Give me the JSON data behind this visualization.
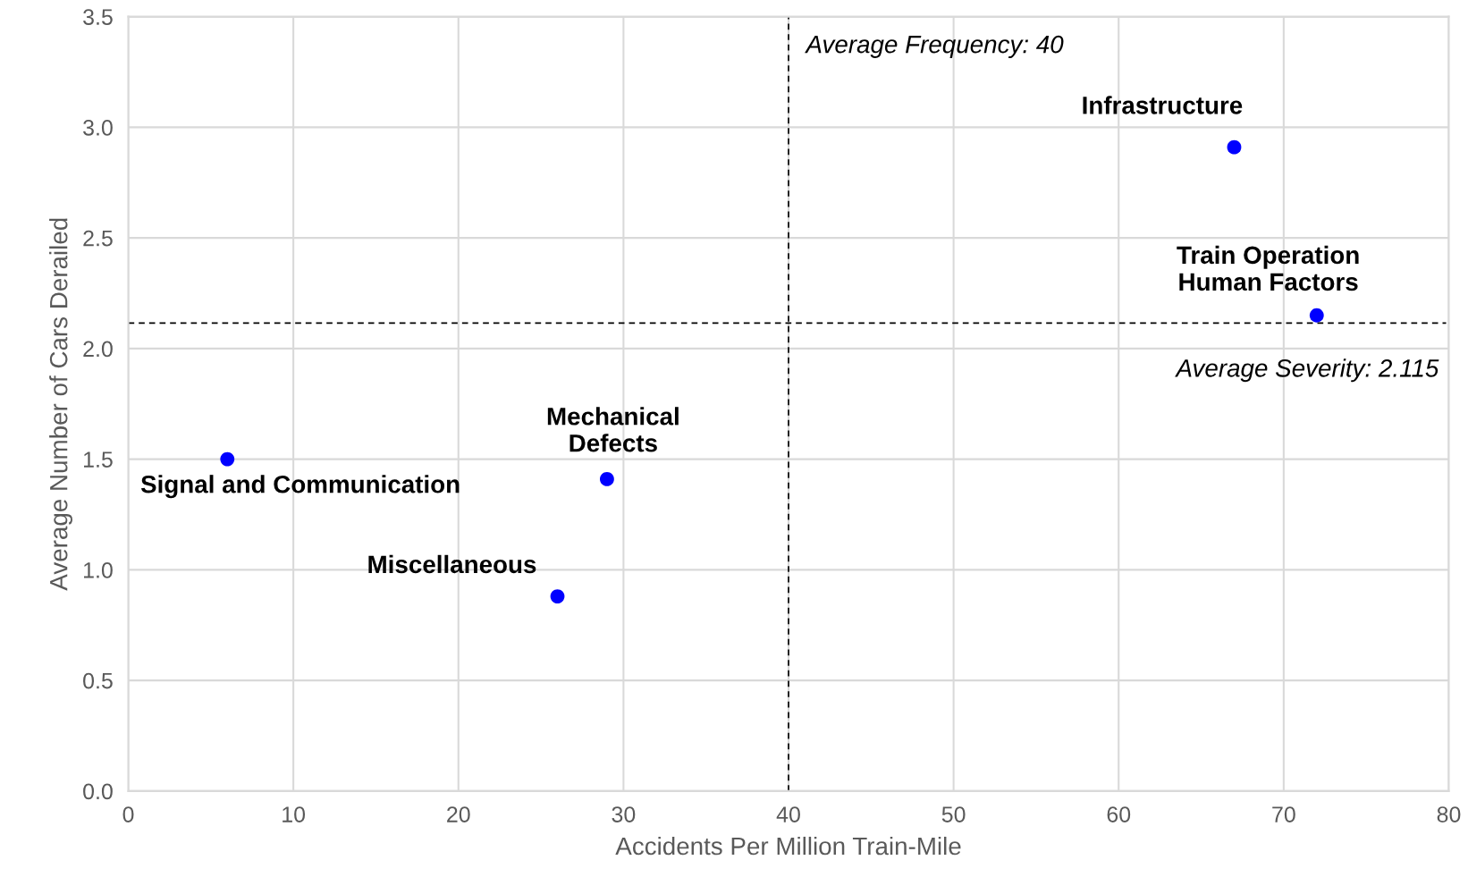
{
  "chart_data": {
    "type": "scatter",
    "xlabel": "Accidents Per Million Train-Mile",
    "ylabel": "Average Number of Cars Derailed",
    "x": [
      6,
      29,
      26,
      67,
      72
    ],
    "series": [
      {
        "color": "#0000ff",
        "values": [
          1.5,
          1.41,
          0.88,
          2.91,
          2.15
        ]
      }
    ],
    "marker": "circle",
    "xlim": [
      0,
      80
    ],
    "xticks": [
      0,
      10,
      20,
      30,
      40,
      50,
      60,
      70,
      80
    ],
    "ylim": [
      0,
      3.5
    ],
    "yticks": [
      {
        "value": 0,
        "label": "0.0"
      },
      {
        "value": 0.5,
        "label": "0.5"
      },
      {
        "value": 1,
        "label": "1.0"
      },
      {
        "value": 1.5,
        "label": "1.5"
      },
      {
        "value": 2,
        "label": "2.0"
      },
      {
        "value": 2.5,
        "label": "2.5"
      },
      {
        "value": 3,
        "label": "3.0"
      },
      {
        "value": 3.5,
        "label": "3.5"
      }
    ],
    "grid": true,
    "ref_lines": [
      {
        "axis": "x",
        "value": 40,
        "label": "Average Frequency: 40",
        "color": "#000000",
        "line_style": "dashed"
      },
      {
        "axis": "y",
        "value": 2.115,
        "label": "Average Severity: 2.115",
        "color": "#000000",
        "line_style": "dashed"
      }
    ],
    "annotations": [
      {
        "text": "Signal and Communication",
        "x": 6,
        "y": 1.5
      },
      {
        "text": "Mechanical\nDefects",
        "x": 29,
        "y": 1.41
      },
      {
        "text": "Miscellaneous",
        "x": 26,
        "y": 0.88
      },
      {
        "text": "Infrastructure",
        "x": 67,
        "y": 2.91
      },
      {
        "text": "Train Operation\nHuman Factors",
        "x": 72,
        "y": 2.15
      }
    ]
  }
}
